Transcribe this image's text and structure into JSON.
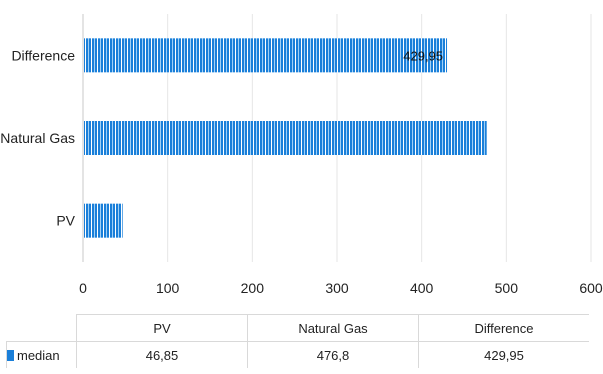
{
  "chart_data": {
    "type": "bar",
    "orientation": "horizontal",
    "categories": [
      "PV",
      "Natural Gas",
      "Difference"
    ],
    "series": [
      {
        "name": "median",
        "values": [
          46.85,
          476.8,
          429.95
        ],
        "color": "#1a7fd9"
      }
    ],
    "xlim": [
      0,
      600
    ],
    "xticks": [
      "0",
      "100",
      "200",
      "300",
      "400",
      "500",
      "600"
    ],
    "grid": true,
    "data_labels": [
      {
        "category": "Difference",
        "text": "429,95"
      }
    ],
    "data_table": {
      "headers": [
        "PV",
        "Natural Gas",
        "Difference"
      ],
      "row_label": "median",
      "row_values": [
        "46,85",
        "476,8",
        "429,95"
      ]
    }
  }
}
